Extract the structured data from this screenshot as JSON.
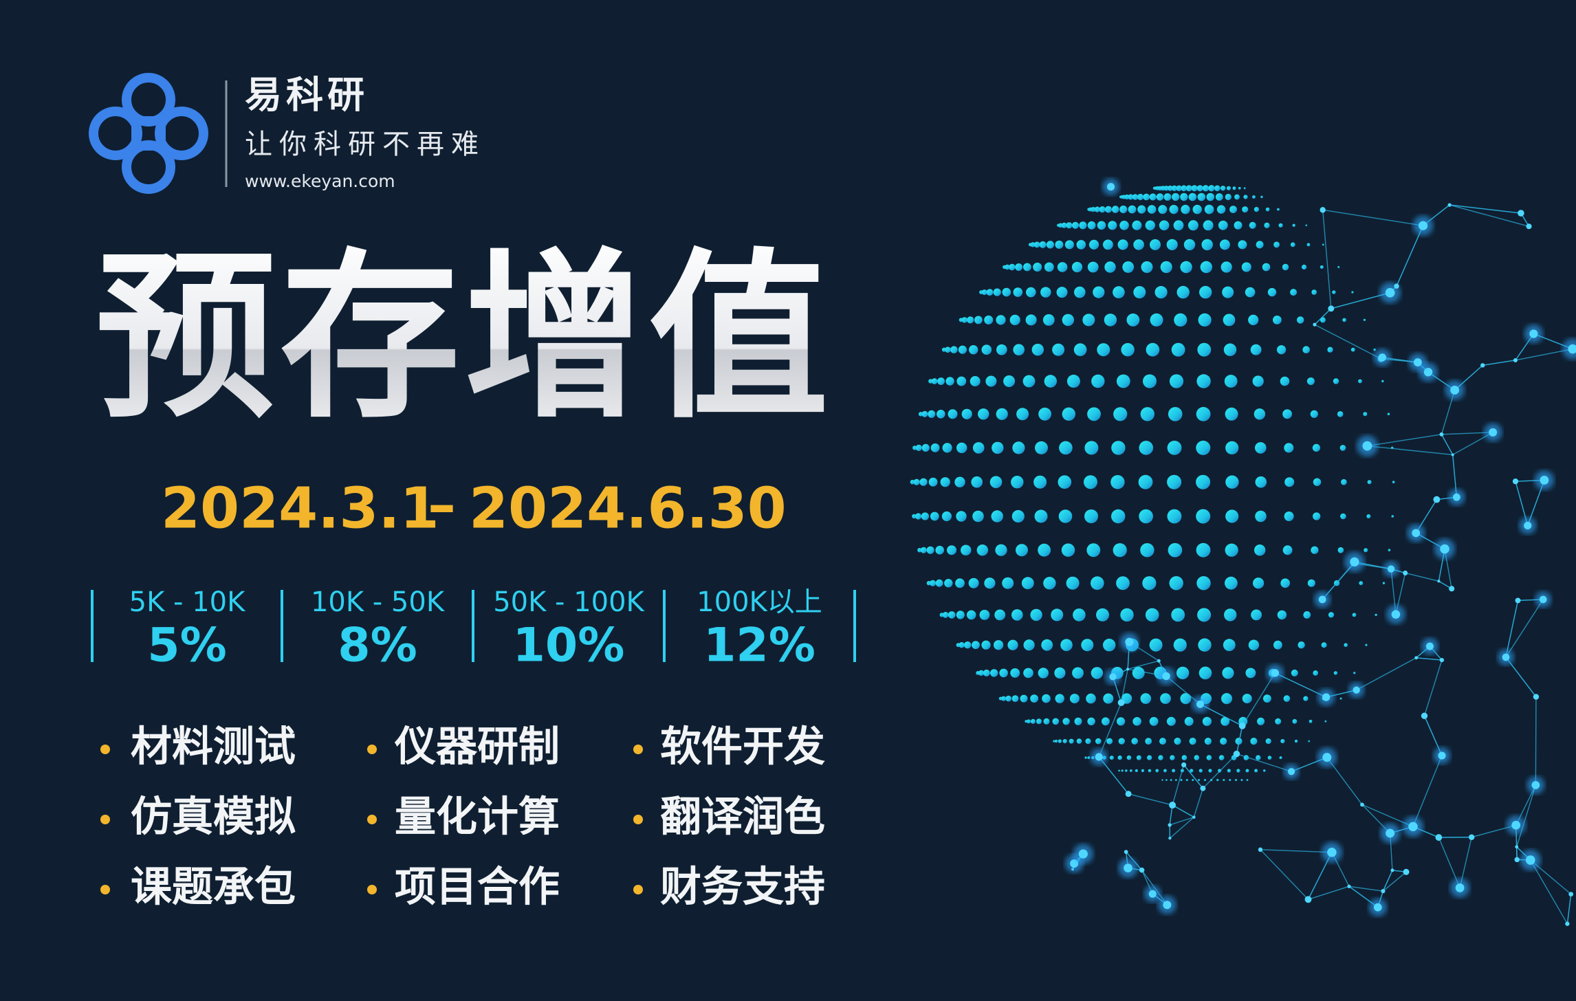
{
  "brand": {
    "name": "易科研",
    "slogan": "让你科研不再难",
    "url": "www.ekeyan.com"
  },
  "title": "预存增值",
  "period": {
    "start": "2024.3.1",
    "separator": "–",
    "end": "2024.6.30"
  },
  "tiers": [
    {
      "range": "5K - 10K",
      "rate": "5%"
    },
    {
      "range": "10K - 50K",
      "rate": "8%"
    },
    {
      "range": "50K - 100K",
      "rate": "10%"
    },
    {
      "range": "100K以上",
      "rate": "12%"
    }
  ],
  "services": [
    [
      "材料测试",
      "仪器研制",
      "软件开发"
    ],
    [
      "仿真模拟",
      "量化计算",
      "翻译润色"
    ],
    [
      "课题承包",
      "项目合作",
      "财务支持"
    ]
  ]
}
